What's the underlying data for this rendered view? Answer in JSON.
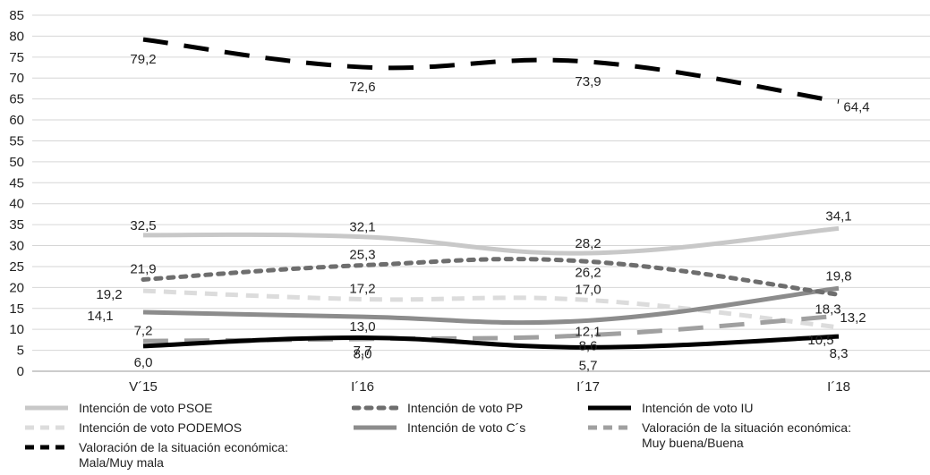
{
  "chart_data": {
    "type": "line",
    "categories": [
      "V´15",
      "I´16",
      "I´17",
      "I´18"
    ],
    "ylim": [
      0,
      85
    ],
    "yticks": [
      0,
      5,
      10,
      15,
      20,
      25,
      30,
      35,
      40,
      45,
      50,
      55,
      60,
      65,
      70,
      75,
      80,
      85
    ],
    "grid": true,
    "legend_position": "bottom",
    "series": [
      {
        "name": "Intención de voto PSOE",
        "values": [
          32.5,
          32.1,
          28.2,
          34.1
        ],
        "labels": [
          "32,5",
          "32,1",
          "28,2",
          "34,1"
        ],
        "color": "#c8c8c8",
        "dash": "solid"
      },
      {
        "name": "Intención de voto PP",
        "values": [
          21.9,
          25.3,
          26.2,
          18.3
        ],
        "labels": [
          "21,9",
          "25,3",
          "26,2",
          "18,3"
        ],
        "color": "#6e6e6e",
        "dash": "dotted"
      },
      {
        "name": "Intención de voto IU",
        "values": [
          6.0,
          8.0,
          5.7,
          8.3
        ],
        "labels": [
          "6,0",
          "8,0",
          "5,7",
          "8,3"
        ],
        "color": "#000000",
        "dash": "solid"
      },
      {
        "name": "Intención de voto PODEMOS",
        "values": [
          19.2,
          17.2,
          17.0,
          10.5
        ],
        "labels": [
          "19,2",
          "17,2",
          "17,0",
          "10,5"
        ],
        "color": "#dcdcdc",
        "dash": "dashed"
      },
      {
        "name": "Intención de voto C´s",
        "values": [
          14.1,
          13.0,
          12.1,
          19.8
        ],
        "labels": [
          "14,1",
          "13,0",
          "12,1",
          "19,8"
        ],
        "color": "#8c8c8c",
        "dash": "solid"
      },
      {
        "name": "Valoración de la situación económica:\nMuy buena/Buena",
        "values": [
          7.2,
          7.7,
          8.6,
          13.2
        ],
        "labels": [
          "7,2",
          "7,7",
          "8,6",
          "13,2"
        ],
        "color": "#a0a0a0",
        "dash": "longdash"
      },
      {
        "name": "Valoración de la situación económica:\nMala/Muy mala",
        "values": [
          79.2,
          72.6,
          73.9,
          64.4
        ],
        "labels": [
          "79,2",
          "72,6",
          "73,9",
          "64,4"
        ],
        "color": "#000000",
        "dash": "longdash"
      }
    ]
  }
}
